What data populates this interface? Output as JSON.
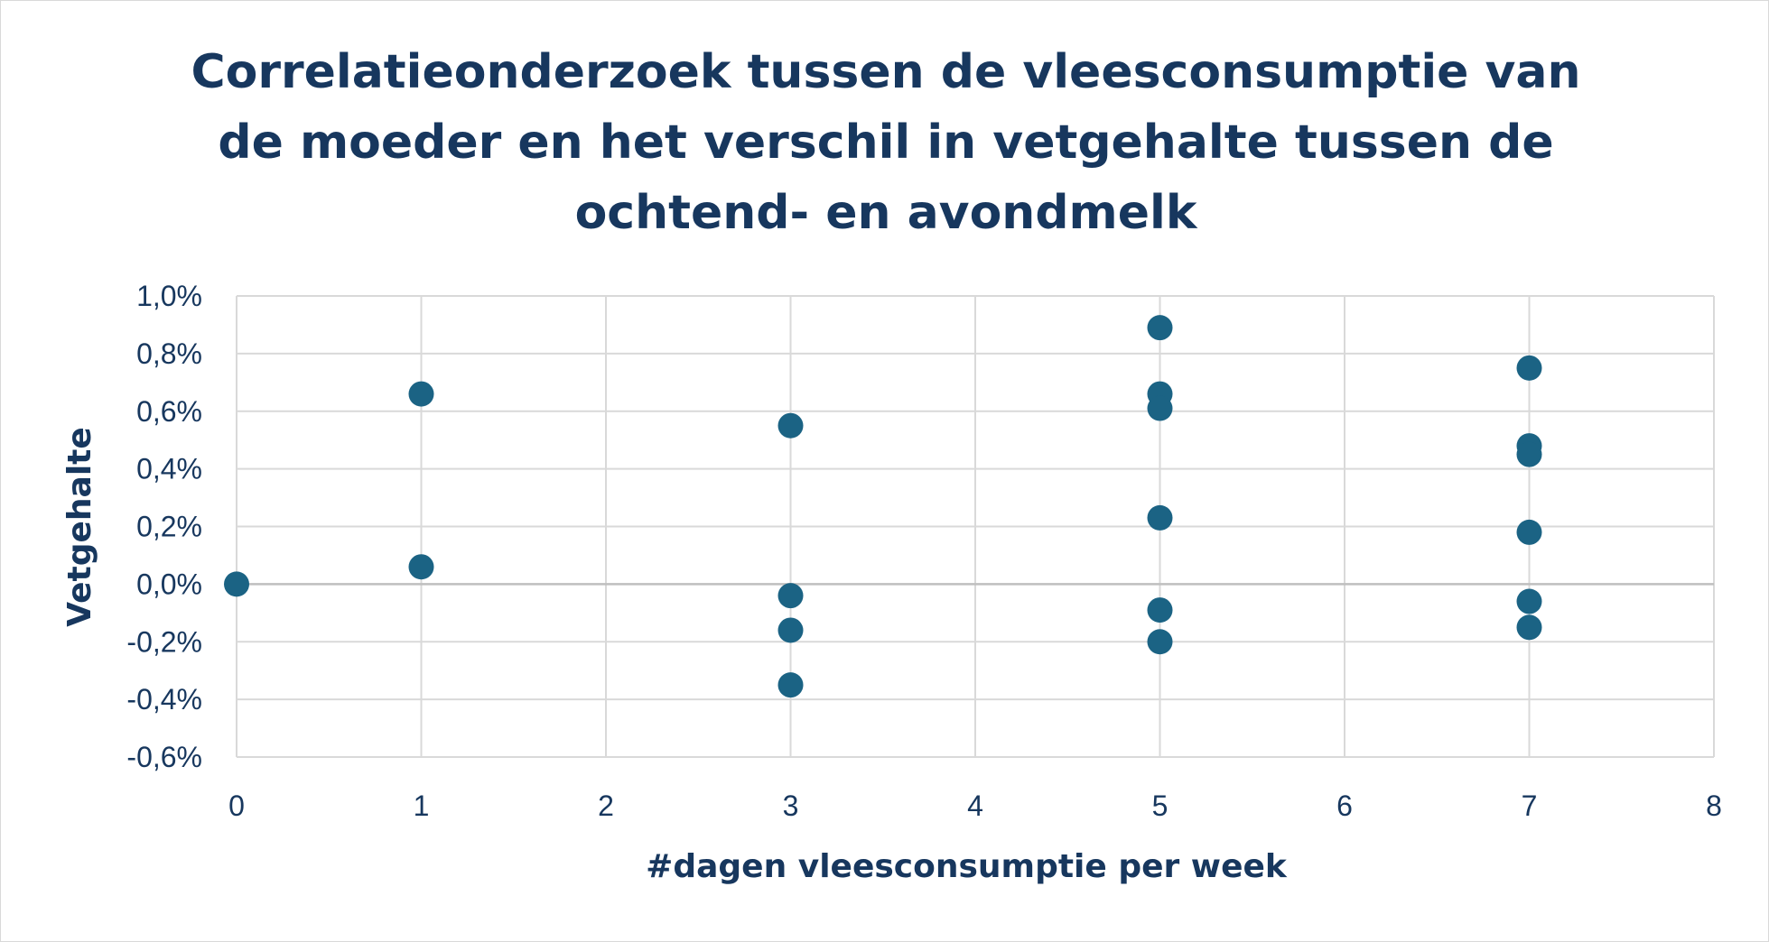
{
  "chart_data": {
    "type": "scatter",
    "title": "Correlatieonderzoek tussen de vleesconsumptie van de moeder en het verschil in vetgehalte tussen de ochtend- en avondmelk",
    "xlabel": "#dagen vleesconsumptie per week",
    "ylabel": "Vetgehalte",
    "xlim": [
      0,
      8
    ],
    "ylim": [
      -0.006,
      0.01
    ],
    "x_ticks": [
      0,
      1,
      2,
      3,
      4,
      5,
      6,
      7,
      8
    ],
    "y_ticks": [
      -0.006,
      -0.004,
      -0.002,
      0.0,
      0.002,
      0.004,
      0.006,
      0.008,
      0.01
    ],
    "x_tick_labels": [
      "0",
      "1",
      "2",
      "3",
      "4",
      "5",
      "6",
      "7",
      "8"
    ],
    "y_tick_labels": [
      "-0,6%",
      "-0,4%",
      "-0,2%",
      "0,0%",
      "0,2%",
      "0,4%",
      "0,6%",
      "0,8%",
      "1,0%"
    ],
    "grid": true,
    "marker_color": "#1b6384",
    "series": [
      {
        "points": [
          {
            "x": 0,
            "y": 0.0
          },
          {
            "x": 1,
            "y": 0.0066
          },
          {
            "x": 1,
            "y": 0.0006
          },
          {
            "x": 3,
            "y": 0.0055
          },
          {
            "x": 3,
            "y": -0.0004
          },
          {
            "x": 3,
            "y": -0.0016
          },
          {
            "x": 3,
            "y": -0.0035
          },
          {
            "x": 5,
            "y": 0.0089
          },
          {
            "x": 5,
            "y": 0.0066
          },
          {
            "x": 5,
            "y": 0.0061
          },
          {
            "x": 5,
            "y": 0.0023
          },
          {
            "x": 5,
            "y": -0.0009
          },
          {
            "x": 5,
            "y": -0.002
          },
          {
            "x": 7,
            "y": 0.0075
          },
          {
            "x": 7,
            "y": 0.0048
          },
          {
            "x": 7,
            "y": 0.0045
          },
          {
            "x": 7,
            "y": 0.0018
          },
          {
            "x": 7,
            "y": -0.0006
          },
          {
            "x": 7,
            "y": -0.0015
          }
        ]
      }
    ]
  }
}
